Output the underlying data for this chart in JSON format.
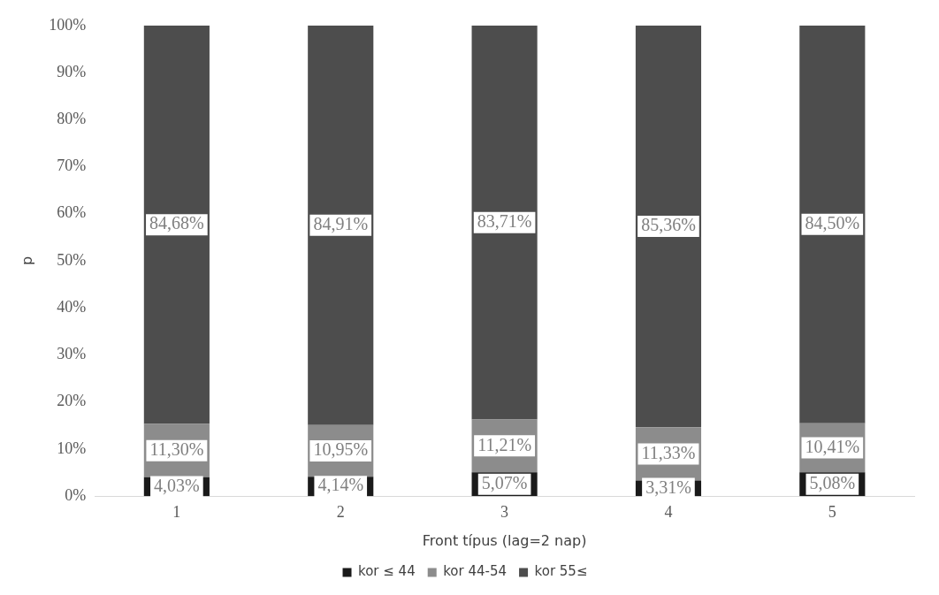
{
  "chart_data": {
    "type": "bar",
    "stacked": true,
    "xlabel": "Front típus (lag=2 nap)",
    "ylabel": "p",
    "categories": [
      "1",
      "2",
      "3",
      "4",
      "5"
    ],
    "series": [
      {
        "name": "kor ≤ 44",
        "color": "#1a1a1a",
        "values": [
          4.03,
          4.14,
          5.07,
          3.31,
          5.08
        ],
        "value_labels": [
          "4,03%",
          "4,14%",
          "5,07%",
          "3,31%",
          "5,08%"
        ]
      },
      {
        "name": "kor 44-54",
        "color": "#8c8c8c",
        "values": [
          11.3,
          10.95,
          11.21,
          11.33,
          10.41
        ],
        "value_labels": [
          "11,30%",
          "10,95%",
          "11,21%",
          "11,33%",
          "10,41%"
        ]
      },
      {
        "name": "kor 55≤",
        "color": "#4d4d4d",
        "values": [
          84.68,
          84.91,
          83.71,
          85.36,
          84.5
        ],
        "value_labels": [
          "84,68%",
          "84,91%",
          "83,71%",
          "85,36%",
          "84,50%"
        ]
      }
    ],
    "ylim": [
      0,
      100
    ],
    "yticks": [
      {
        "value": 0,
        "label": "0%"
      },
      {
        "value": 10,
        "label": "10%"
      },
      {
        "value": 20,
        "label": "20%"
      },
      {
        "value": 30,
        "label": "30%"
      },
      {
        "value": 40,
        "label": "40%"
      },
      {
        "value": 50,
        "label": "50%"
      },
      {
        "value": 60,
        "label": "60%"
      },
      {
        "value": 70,
        "label": "70%"
      },
      {
        "value": 80,
        "label": "80%"
      },
      {
        "value": 90,
        "label": "90%"
      },
      {
        "value": 100,
        "label": "100%"
      }
    ],
    "grid": false,
    "legend": "bottom"
  }
}
